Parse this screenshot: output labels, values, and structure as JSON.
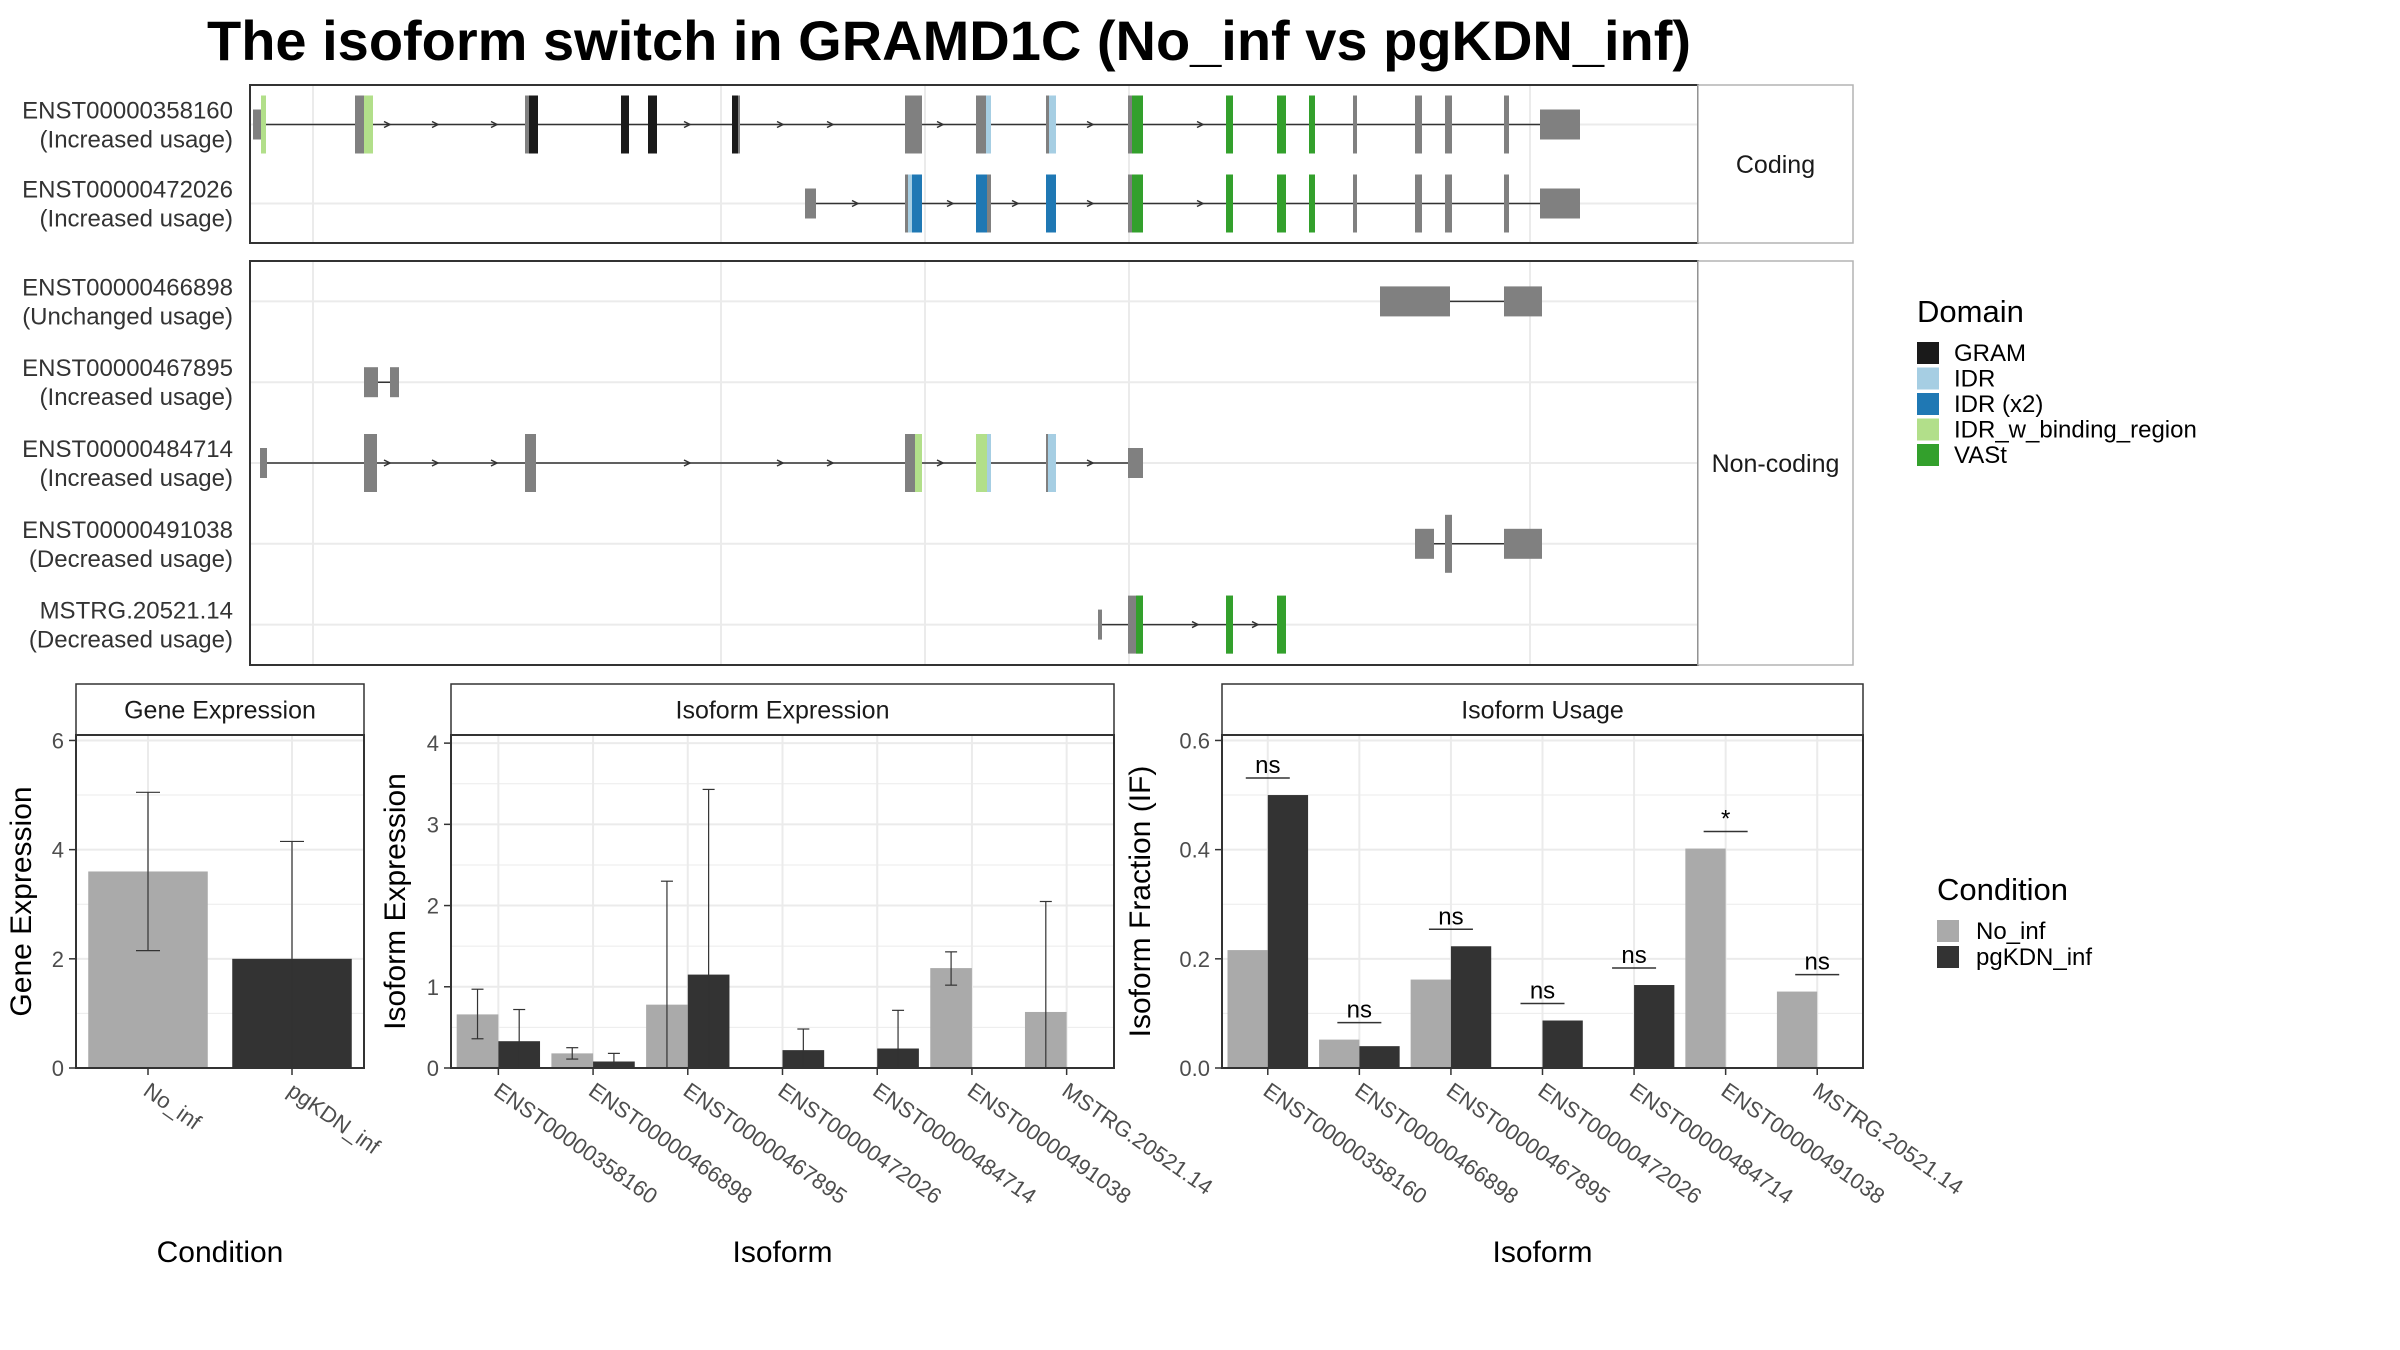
{
  "title": "The isoform switch in GRAMD1C (No_inf vs pgKDN_inf)",
  "colors": {
    "exon": "#808080",
    "GRAM": "#1a1a1a",
    "IDR": "#a6cee3",
    "IDR (x2)": "#1f78b4",
    "IDR_w_binding_region": "#b2df8a",
    "VASt": "#33a02c",
    "No_inf": "#aaaaaa",
    "pgKDN_inf": "#333333",
    "grid": "#ebebeb"
  },
  "structure": {
    "facets": [
      {
        "label": "Coding",
        "transcripts": [
          {
            "name": "ENST00000358160",
            "usage": "(Increased usage)",
            "exons": [
              [
                0.003,
                0.016
              ],
              [
                0.105,
                0.123
              ],
              [
                0.275,
                0.288
              ],
              [
                0.371,
                0.379
              ],
              [
                0.398,
                0.407
              ],
              [
                0.482,
                0.49
              ],
              [
                0.655,
                0.672
              ],
              [
                0.726,
                0.741
              ],
              [
                0.796,
                0.806
              ],
              [
                0.878,
                0.893
              ],
              [
                0.976,
                0.983
              ],
              [
                1.027,
                1.036
              ],
              [
                1.059,
                1.065
              ],
              [
                1.103,
                1.107
              ],
              [
                1.165,
                1.172
              ],
              [
                1.195,
                1.202
              ],
              [
                1.254,
                1.259
              ],
              [
                1.29,
                1.33
              ]
            ],
            "domains": [
              {
                "domain": "IDR_w_binding_region",
                "segs": [
                  [
                    0.011,
                    0.016
                  ],
                  [
                    0.114,
                    0.123
                  ]
                ]
              },
              {
                "domain": "GRAM",
                "segs": [
                  [
                    0.279,
                    0.288
                  ],
                  [
                    0.371,
                    0.379
                  ],
                  [
                    0.398,
                    0.407
                  ],
                  [
                    0.482,
                    0.488
                  ]
                ]
              },
              {
                "domain": "IDR",
                "segs": [
                  [
                    0.736,
                    0.741
                  ],
                  [
                    0.799,
                    0.806
                  ]
                ]
              },
              {
                "domain": "VASt",
                "segs": [
                  [
                    0.882,
                    0.893
                  ],
                  [
                    0.976,
                    0.983
                  ],
                  [
                    1.027,
                    1.036
                  ],
                  [
                    1.059,
                    1.065
                  ]
                ]
              }
            ],
            "arrows": [
              0.137,
              0.185,
              0.244,
              0.437,
              0.53,
              0.58,
              0.69,
              0.84,
              0.95
            ]
          },
          {
            "name": "ENST00000472026",
            "usage": "(Increased usage)",
            "exons": [
              [
                0.555,
                0.566
              ],
              [
                0.655,
                0.672
              ],
              [
                0.726,
                0.741
              ],
              [
                0.796,
                0.806
              ],
              [
                0.878,
                0.893
              ],
              [
                0.976,
                0.983
              ],
              [
                1.027,
                1.036
              ],
              [
                1.059,
                1.065
              ],
              [
                1.103,
                1.107
              ],
              [
                1.165,
                1.172
              ],
              [
                1.195,
                1.202
              ],
              [
                1.254,
                1.259
              ],
              [
                1.29,
                1.33
              ]
            ],
            "domains": [
              {
                "domain": "IDR",
                "segs": [
                  [
                    0.658,
                    0.662
                  ]
                ]
              },
              {
                "domain": "IDR (x2)",
                "segs": [
                  [
                    0.662,
                    0.672
                  ],
                  [
                    0.726,
                    0.737
                  ],
                  [
                    0.796,
                    0.806
                  ]
                ]
              },
              {
                "domain": "VASt",
                "segs": [
                  [
                    0.882,
                    0.893
                  ],
                  [
                    0.976,
                    0.983
                  ],
                  [
                    1.027,
                    1.036
                  ],
                  [
                    1.059,
                    1.065
                  ]
                ]
              }
            ],
            "arrows": [
              0.605,
              0.7,
              0.765,
              0.84,
              0.95
            ]
          }
        ]
      },
      {
        "label": "Non-coding",
        "transcripts": [
          {
            "name": "ENST00000466898",
            "usage": "(Unchanged usage)",
            "exons": [
              [
                1.13,
                1.2
              ],
              [
                1.254,
                1.292
              ]
            ],
            "domains": [],
            "arrows": []
          },
          {
            "name": "ENST00000467895",
            "usage": "(Increased usage)",
            "exons": [
              [
                0.114,
                0.128
              ],
              [
                0.14,
                0.149
              ]
            ],
            "domains": [],
            "arrows": []
          },
          {
            "name": "ENST00000484714",
            "usage": "(Increased usage)",
            "exons": [
              [
                0.01,
                0.017
              ],
              [
                0.114,
                0.127
              ],
              [
                0.275,
                0.286
              ],
              [
                0.655,
                0.672
              ],
              [
                0.726,
                0.741
              ],
              [
                0.796,
                0.806
              ],
              [
                0.878,
                0.893
              ]
            ],
            "domains": [
              {
                "domain": "IDR_w_binding_region",
                "segs": [
                  [
                    0.665,
                    0.672
                  ],
                  [
                    0.726,
                    0.737
                  ]
                ]
              },
              {
                "domain": "IDR",
                "segs": [
                  [
                    0.737,
                    0.741
                  ],
                  [
                    0.798,
                    0.806
                  ]
                ]
              }
            ],
            "arrows": [
              0.137,
              0.185,
              0.244,
              0.437,
              0.53,
              0.58,
              0.69,
              0.84
            ]
          },
          {
            "name": "ENST00000491038",
            "usage": "(Decreased usage)",
            "exons": [
              [
                1.165,
                1.184
              ],
              [
                1.195,
                1.202
              ],
              [
                1.254,
                1.292
              ]
            ],
            "domains": [],
            "arrows": []
          },
          {
            "name": "MSTRG.20521.14",
            "usage": "(Decreased usage)",
            "exons": [
              [
                0.848,
                0.852
              ],
              [
                0.878,
                0.893
              ],
              [
                0.976,
                0.983
              ],
              [
                1.027,
                1.036
              ]
            ],
            "domains": [
              {
                "domain": "VASt",
                "segs": [
                  [
                    0.886,
                    0.893
                  ],
                  [
                    0.976,
                    0.983
                  ],
                  [
                    1.027,
                    1.036
                  ]
                ]
              }
            ],
            "arrows": [
              0.945,
              1.005
            ]
          }
        ]
      }
    ],
    "legend": {
      "title": "Domain",
      "items": [
        "GRAM",
        "IDR",
        "IDR (x2)",
        "IDR_w_binding_region",
        "VASt"
      ]
    }
  },
  "chart_data": [
    {
      "type": "bar",
      "title": "Gene Expression",
      "xlabel": "Condition",
      "ylabel": "Gene Expression",
      "ylim": [
        0,
        6.1
      ],
      "yticks": [
        0,
        2,
        4,
        6
      ],
      "categories": [
        "No_inf",
        "pgKDN_inf"
      ],
      "values": [
        3.6,
        2.0
      ],
      "errors": [
        [
          2.15,
          5.05
        ],
        [
          0.0,
          4.15
        ]
      ]
    },
    {
      "type": "bar",
      "title": "Isoform Expression",
      "xlabel": "Isoform",
      "ylabel": "Isoform Expression",
      "ylim": [
        0,
        4.1
      ],
      "yticks": [
        0,
        1,
        2,
        3,
        4
      ],
      "categories": [
        "ENST00000358160",
        "ENST00000466898",
        "ENST00000467895",
        "ENST00000472026",
        "ENST00000484714",
        "ENST00000491038",
        "MSTRG.20521.14"
      ],
      "series": [
        {
          "name": "No_inf",
          "values": [
            0.66,
            0.18,
            0.78,
            0.0,
            0.0,
            1.23,
            0.69
          ],
          "errors": [
            [
              0.36,
              0.97
            ],
            [
              0.11,
              0.25
            ],
            [
              0.0,
              2.3
            ],
            [
              0.0,
              0.0
            ],
            [
              0.0,
              0.0
            ],
            [
              1.02,
              1.43
            ],
            [
              0.0,
              2.05
            ]
          ]
        },
        {
          "name": "pgKDN_inf",
          "values": [
            0.33,
            0.08,
            1.15,
            0.22,
            0.24,
            0.0,
            0.0
          ],
          "errors": [
            [
              0.0,
              0.72
            ],
            [
              0.0,
              0.18
            ],
            [
              0.0,
              3.43
            ],
            [
              0.0,
              0.48
            ],
            [
              0.0,
              0.71
            ],
            [
              0.0,
              0.0
            ],
            [
              0.0,
              0.0
            ]
          ]
        }
      ]
    },
    {
      "type": "bar",
      "title": "Isoform Usage",
      "xlabel": "Isoform",
      "ylabel": "Isoform Fraction (IF)",
      "ylim": [
        0,
        0.61
      ],
      "yticks": [
        "0.0",
        "0.2",
        "0.4",
        "0.6"
      ],
      "categories": [
        "ENST00000358160",
        "ENST00000466898",
        "ENST00000467895",
        "ENST00000472026",
        "ENST00000484714",
        "ENST00000491038",
        "MSTRG.20521.14"
      ],
      "series": [
        {
          "name": "No_inf",
          "values": [
            0.216,
            0.052,
            0.162,
            0.0,
            0.0,
            0.402,
            0.14
          ]
        },
        {
          "name": "pgKDN_inf",
          "values": [
            0.5,
            0.04,
            0.223,
            0.087,
            0.152,
            0.0,
            0.0
          ]
        }
      ],
      "significance": [
        "ns",
        "ns",
        "ns",
        "ns",
        "ns",
        "*",
        "ns"
      ]
    }
  ],
  "condition_legend": {
    "title": "Condition",
    "items": [
      "No_inf",
      "pgKDN_inf"
    ]
  }
}
